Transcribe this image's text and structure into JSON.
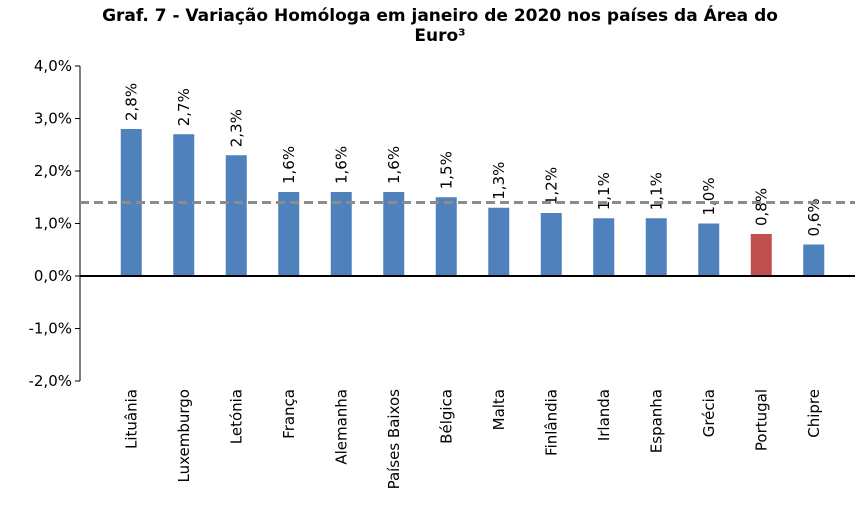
{
  "chart_data": {
    "type": "bar",
    "title": "Graf. 7 - Variação Homóloga em janeiro de 2020 nos países da Área do Euro³",
    "categories": [
      "Lituânia",
      "Luxemburgo",
      "Letónia",
      "França",
      "Alemanha",
      "Países Baixos",
      "Bélgica",
      "Malta",
      "Finlândia",
      "Irlanda",
      "Espanha",
      "Grécia",
      "Portugal",
      "Chipre"
    ],
    "values": [
      2.8,
      2.7,
      2.3,
      1.6,
      1.6,
      1.6,
      1.5,
      1.3,
      1.2,
      1.1,
      1.1,
      1.0,
      0.8,
      0.6
    ],
    "value_labels": [
      "2,8%",
      "2,7%",
      "2,3%",
      "1,6%",
      "1,6%",
      "1,6%",
      "1,5%",
      "1,3%",
      "1,2%",
      "1,1%",
      "1,1%",
      "1,0%",
      "0,8%",
      "0,6%"
    ],
    "colors": [
      "#4f81bd",
      "#4f81bd",
      "#4f81bd",
      "#4f81bd",
      "#4f81bd",
      "#4f81bd",
      "#4f81bd",
      "#4f81bd",
      "#4f81bd",
      "#4f81bd",
      "#4f81bd",
      "#4f81bd",
      "#c0504d",
      "#4f81bd"
    ],
    "reference_line": 1.4,
    "reference_color": "#8c8c8c",
    "ylim": [
      -2,
      4
    ],
    "yticks": [
      {
        "value": -2,
        "label": "-2,0%"
      },
      {
        "value": -1,
        "label": "-1,0%"
      },
      {
        "value": 0,
        "label": "0,0%"
      },
      {
        "value": 1,
        "label": "1,0%"
      },
      {
        "value": 2,
        "label": "2,0%"
      },
      {
        "value": 3,
        "label": "3,0%"
      },
      {
        "value": 4,
        "label": "4,0%"
      }
    ]
  }
}
